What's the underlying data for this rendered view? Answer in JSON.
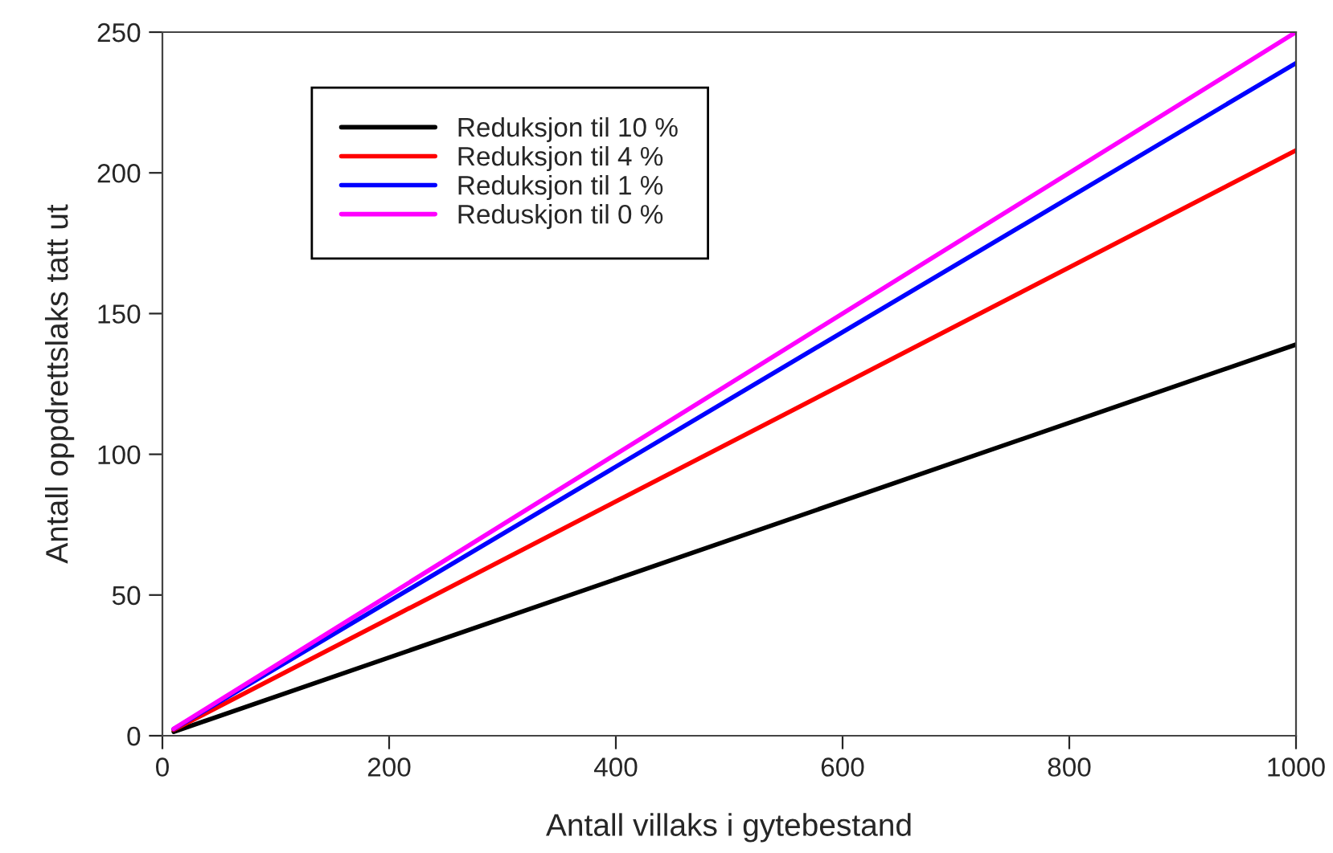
{
  "chart_data": {
    "type": "line",
    "xlabel": "Antall villaks i gytebestand",
    "ylabel": "Antall oppdrettslaks tatt ut",
    "x": [
      10,
      1000
    ],
    "series": [
      {
        "name": "Reduksjon til 10 %",
        "color": "#000000",
        "values": [
          1.4,
          139
        ]
      },
      {
        "name": "Reduksjon til 4 %",
        "color": "#ff0000",
        "values": [
          2.1,
          208
        ]
      },
      {
        "name": "Reduksjon til 1 %",
        "color": "#0000ff",
        "values": [
          2.4,
          239
        ]
      },
      {
        "name": "Reduskjon til 0 %",
        "color": "#ff00ff",
        "values": [
          2.5,
          250
        ]
      }
    ],
    "xlim": [
      0,
      1000
    ],
    "ylim": [
      0,
      250
    ],
    "xticks": [
      0,
      200,
      400,
      600,
      800,
      1000
    ],
    "yticks": [
      0,
      50,
      100,
      150,
      200,
      250
    ],
    "grid": false,
    "legend": "top left",
    "marker": "none",
    "line_style": "solid"
  }
}
